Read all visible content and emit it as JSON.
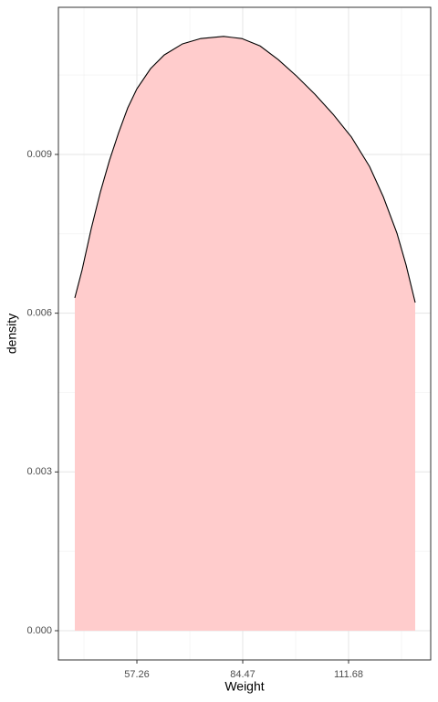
{
  "chart_data": {
    "type": "density",
    "x_label": "Weight",
    "y_label": "density",
    "x": [
      41.3,
      43.18,
      45.53,
      47.87,
      50.22,
      52.56,
      54.91,
      57.26,
      60.77,
      64.29,
      68.99,
      73.68,
      79.54,
      84.23,
      88.93,
      93.62,
      98.31,
      103.0,
      107.69,
      112.39,
      117.08,
      120.6,
      124.12,
      126.46,
      128.81
    ],
    "values": [
      0.00629,
      0.00682,
      0.0076,
      0.00829,
      0.00889,
      0.00941,
      0.00988,
      0.01024,
      0.01062,
      0.01088,
      0.01109,
      0.01119,
      0.01123,
      0.01119,
      0.01105,
      0.01079,
      0.01048,
      0.01014,
      0.00976,
      0.00933,
      0.00877,
      0.0082,
      0.00751,
      0.00691,
      0.0062
    ],
    "fill_color": "#ffcccc",
    "line_color": "#000000",
    "xlim": [
      37.08,
      132.79
    ],
    "ylim": [
      -0.000553,
      0.01178
    ],
    "xticks": [
      57.26,
      84.47,
      111.68
    ],
    "yticks": [
      {
        "value": 0,
        "label": "0.000"
      },
      {
        "value": 0.003,
        "label": "0.003"
      },
      {
        "value": 0.006,
        "label": "0.006"
      },
      {
        "value": 0.009,
        "label": "0.009"
      }
    ],
    "grid": true
  }
}
